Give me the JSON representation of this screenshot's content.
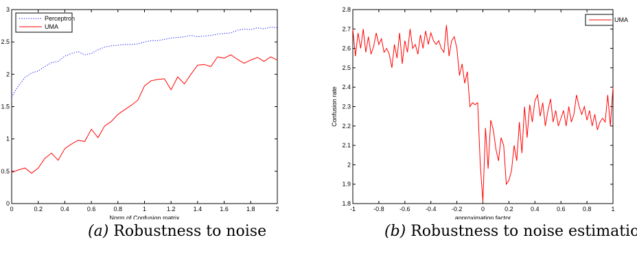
{
  "chart_data": [
    {
      "type": "line",
      "xlabel": "Norm of Confusion matrix",
      "ylabel": "Confusion rate",
      "xlim": [
        0,
        2
      ],
      "ylim": [
        0,
        3
      ],
      "xticks": [
        0,
        0.2,
        0.4,
        0.6,
        0.8,
        1,
        1.2,
        1.4,
        1.6,
        1.8,
        2
      ],
      "xtick_labels": [
        "0",
        "0.2",
        "0.4",
        "0.6",
        "0.8",
        "1",
        "1.2",
        "1.4",
        "1.6",
        "1.8",
        "2"
      ],
      "yticks": [
        0,
        0.5,
        1,
        1.5,
        2,
        2.5,
        3
      ],
      "ytick_labels": [
        "0",
        "0.5",
        "1",
        "1.5",
        "2",
        "2.5",
        "3"
      ],
      "legend_position": "top-left",
      "grid": false,
      "series": [
        {
          "name": "Perceptron",
          "color": "#0000ff",
          "style": "dotted",
          "x": [
            0,
            0.05,
            0.1,
            0.15,
            0.2,
            0.25,
            0.3,
            0.35,
            0.4,
            0.45,
            0.5,
            0.55,
            0.6,
            0.65,
            0.7,
            0.75,
            0.8,
            0.85,
            0.9,
            0.95,
            1.0,
            1.05,
            1.1,
            1.15,
            1.2,
            1.25,
            1.3,
            1.35,
            1.4,
            1.45,
            1.5,
            1.55,
            1.6,
            1.65,
            1.7,
            1.75,
            1.8,
            1.85,
            1.9,
            1.95,
            2.0
          ],
          "y": [
            1.65,
            1.82,
            1.95,
            2.02,
            2.05,
            2.12,
            2.18,
            2.2,
            2.28,
            2.32,
            2.35,
            2.3,
            2.32,
            2.38,
            2.42,
            2.44,
            2.45,
            2.46,
            2.46,
            2.47,
            2.5,
            2.52,
            2.52,
            2.54,
            2.56,
            2.57,
            2.58,
            2.6,
            2.58,
            2.59,
            2.6,
            2.62,
            2.63,
            2.64,
            2.68,
            2.7,
            2.69,
            2.72,
            2.7,
            2.73,
            2.72
          ]
        },
        {
          "name": "UMA",
          "color": "#ff0000",
          "style": "solid",
          "x": [
            0,
            0.05,
            0.1,
            0.15,
            0.2,
            0.25,
            0.3,
            0.35,
            0.4,
            0.45,
            0.5,
            0.55,
            0.6,
            0.65,
            0.7,
            0.75,
            0.8,
            0.85,
            0.9,
            0.95,
            1.0,
            1.05,
            1.1,
            1.15,
            1.2,
            1.25,
            1.3,
            1.35,
            1.4,
            1.45,
            1.5,
            1.55,
            1.6,
            1.65,
            1.7,
            1.75,
            1.8,
            1.85,
            1.9,
            1.95,
            2.0
          ],
          "y": [
            0.48,
            0.52,
            0.55,
            0.47,
            0.55,
            0.7,
            0.78,
            0.67,
            0.85,
            0.92,
            0.98,
            0.96,
            1.15,
            1.02,
            1.2,
            1.27,
            1.38,
            1.45,
            1.52,
            1.6,
            1.82,
            1.9,
            1.92,
            1.93,
            1.76,
            1.96,
            1.85,
            2.0,
            2.14,
            2.15,
            2.12,
            2.27,
            2.25,
            2.3,
            2.23,
            2.17,
            2.22,
            2.26,
            2.2,
            2.27,
            2.22
          ]
        }
      ]
    },
    {
      "type": "line",
      "xlabel": "approximation factor",
      "ylabel": "Confusion rate",
      "xlim": [
        -1,
        1
      ],
      "ylim": [
        1.8,
        2.8
      ],
      "xticks": [
        -1,
        -0.8,
        -0.6,
        -0.4,
        -0.2,
        0,
        0.2,
        0.4,
        0.6,
        0.8,
        1
      ],
      "xtick_labels": [
        "-1",
        "-0.8",
        "-0.6",
        "-0.4",
        "-0.2",
        "0",
        "0.2",
        "0.4",
        "0.6",
        "0.8",
        "1"
      ],
      "yticks": [
        1.8,
        1.9,
        2.0,
        2.1,
        2.2,
        2.3,
        2.4,
        2.5,
        2.6,
        2.7,
        2.8
      ],
      "ytick_labels": [
        "1.8",
        "1.9",
        "2",
        "2.1",
        "2.2",
        "2.3",
        "2.4",
        "2.5",
        "2.6",
        "2.7",
        "2.8"
      ],
      "legend_position": "top-right",
      "grid": false,
      "series": [
        {
          "name": "UMA",
          "color": "#ff0000",
          "style": "solid",
          "x": [
            -1.0,
            -0.98,
            -0.96,
            -0.94,
            -0.92,
            -0.9,
            -0.88,
            -0.86,
            -0.84,
            -0.82,
            -0.8,
            -0.78,
            -0.76,
            -0.74,
            -0.72,
            -0.7,
            -0.68,
            -0.66,
            -0.64,
            -0.62,
            -0.6,
            -0.58,
            -0.56,
            -0.54,
            -0.52,
            -0.5,
            -0.48,
            -0.46,
            -0.44,
            -0.42,
            -0.4,
            -0.38,
            -0.36,
            -0.34,
            -0.32,
            -0.3,
            -0.28,
            -0.26,
            -0.24,
            -0.22,
            -0.2,
            -0.18,
            -0.16,
            -0.14,
            -0.12,
            -0.1,
            -0.08,
            -0.06,
            -0.04,
            -0.02,
            0.0,
            0.02,
            0.04,
            0.06,
            0.08,
            0.1,
            0.12,
            0.14,
            0.16,
            0.18,
            0.2,
            0.22,
            0.24,
            0.26,
            0.28,
            0.3,
            0.32,
            0.34,
            0.36,
            0.38,
            0.4,
            0.42,
            0.44,
            0.46,
            0.48,
            0.5,
            0.52,
            0.54,
            0.56,
            0.58,
            0.6,
            0.62,
            0.64,
            0.66,
            0.68,
            0.7,
            0.72,
            0.74,
            0.76,
            0.78,
            0.8,
            0.82,
            0.84,
            0.86,
            0.88,
            0.9,
            0.92,
            0.94,
            0.96,
            0.98,
            1.0
          ],
          "y": [
            2.7,
            2.56,
            2.68,
            2.6,
            2.7,
            2.58,
            2.66,
            2.57,
            2.61,
            2.68,
            2.62,
            2.65,
            2.58,
            2.6,
            2.57,
            2.5,
            2.62,
            2.55,
            2.68,
            2.52,
            2.64,
            2.58,
            2.7,
            2.6,
            2.62,
            2.57,
            2.67,
            2.6,
            2.69,
            2.62,
            2.68,
            2.64,
            2.62,
            2.64,
            2.6,
            2.58,
            2.72,
            2.56,
            2.64,
            2.66,
            2.6,
            2.46,
            2.52,
            2.42,
            2.48,
            2.3,
            2.32,
            2.31,
            2.32,
            2.0,
            1.81,
            2.19,
            1.98,
            2.23,
            2.18,
            2.08,
            2.02,
            2.14,
            2.1,
            1.9,
            1.92,
            1.97,
            2.1,
            2.02,
            2.22,
            2.06,
            2.3,
            2.14,
            2.31,
            2.22,
            2.33,
            2.36,
            2.25,
            2.32,
            2.2,
            2.28,
            2.34,
            2.22,
            2.28,
            2.2,
            2.24,
            2.28,
            2.2,
            2.3,
            2.22,
            2.26,
            2.36,
            2.3,
            2.26,
            2.3,
            2.23,
            2.28,
            2.2,
            2.26,
            2.18,
            2.22,
            2.24,
            2.22,
            2.36,
            2.2,
            2.4
          ]
        }
      ]
    }
  ],
  "captions": [
    {
      "label": "(a)",
      "text": " Robustness to noise"
    },
    {
      "label": "(b)",
      "text": " Robustness to noise estimation"
    }
  ]
}
